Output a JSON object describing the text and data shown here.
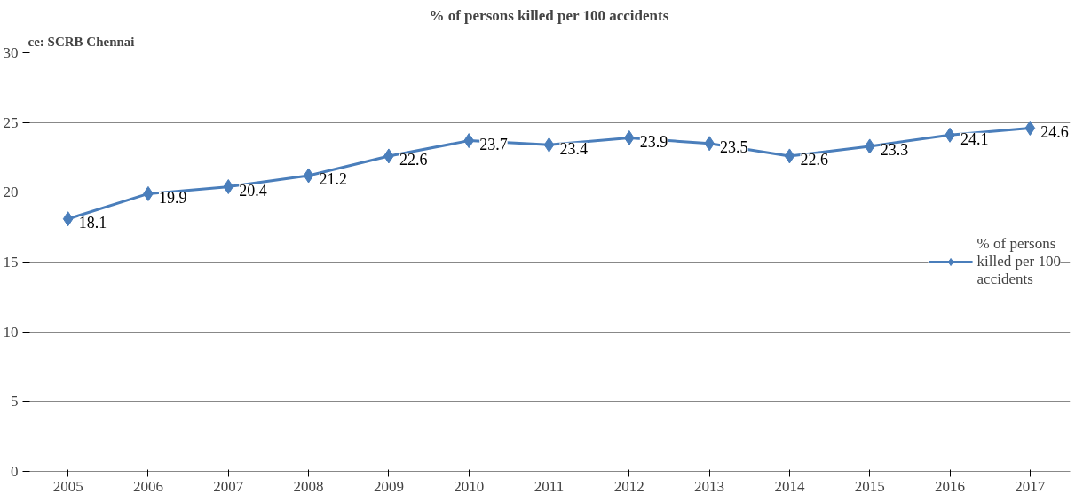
{
  "chart_data": {
    "type": "line",
    "title": "% of persons killed per 100 accidents",
    "annotations": [
      "ce: SCRB Chennai"
    ],
    "categories": [
      "2005",
      "2006",
      "2007",
      "2008",
      "2009",
      "2010",
      "2011",
      "2012",
      "2013",
      "2014",
      "2015",
      "2016",
      "2017"
    ],
    "series": [
      {
        "name": "% of persons killed per 100 accidents",
        "color": "#4a7ebb",
        "values": [
          18.1,
          19.9,
          20.4,
          21.2,
          22.6,
          23.7,
          23.4,
          23.9,
          23.5,
          22.6,
          23.3,
          24.1,
          24.6
        ]
      }
    ],
    "ylim": [
      0,
      30
    ],
    "yticks": [
      0,
      5,
      10,
      15,
      20,
      25,
      30
    ],
    "grid": "y",
    "legend": "right",
    "marker": "diamond",
    "line_style": "solid",
    "data_labels": true
  }
}
